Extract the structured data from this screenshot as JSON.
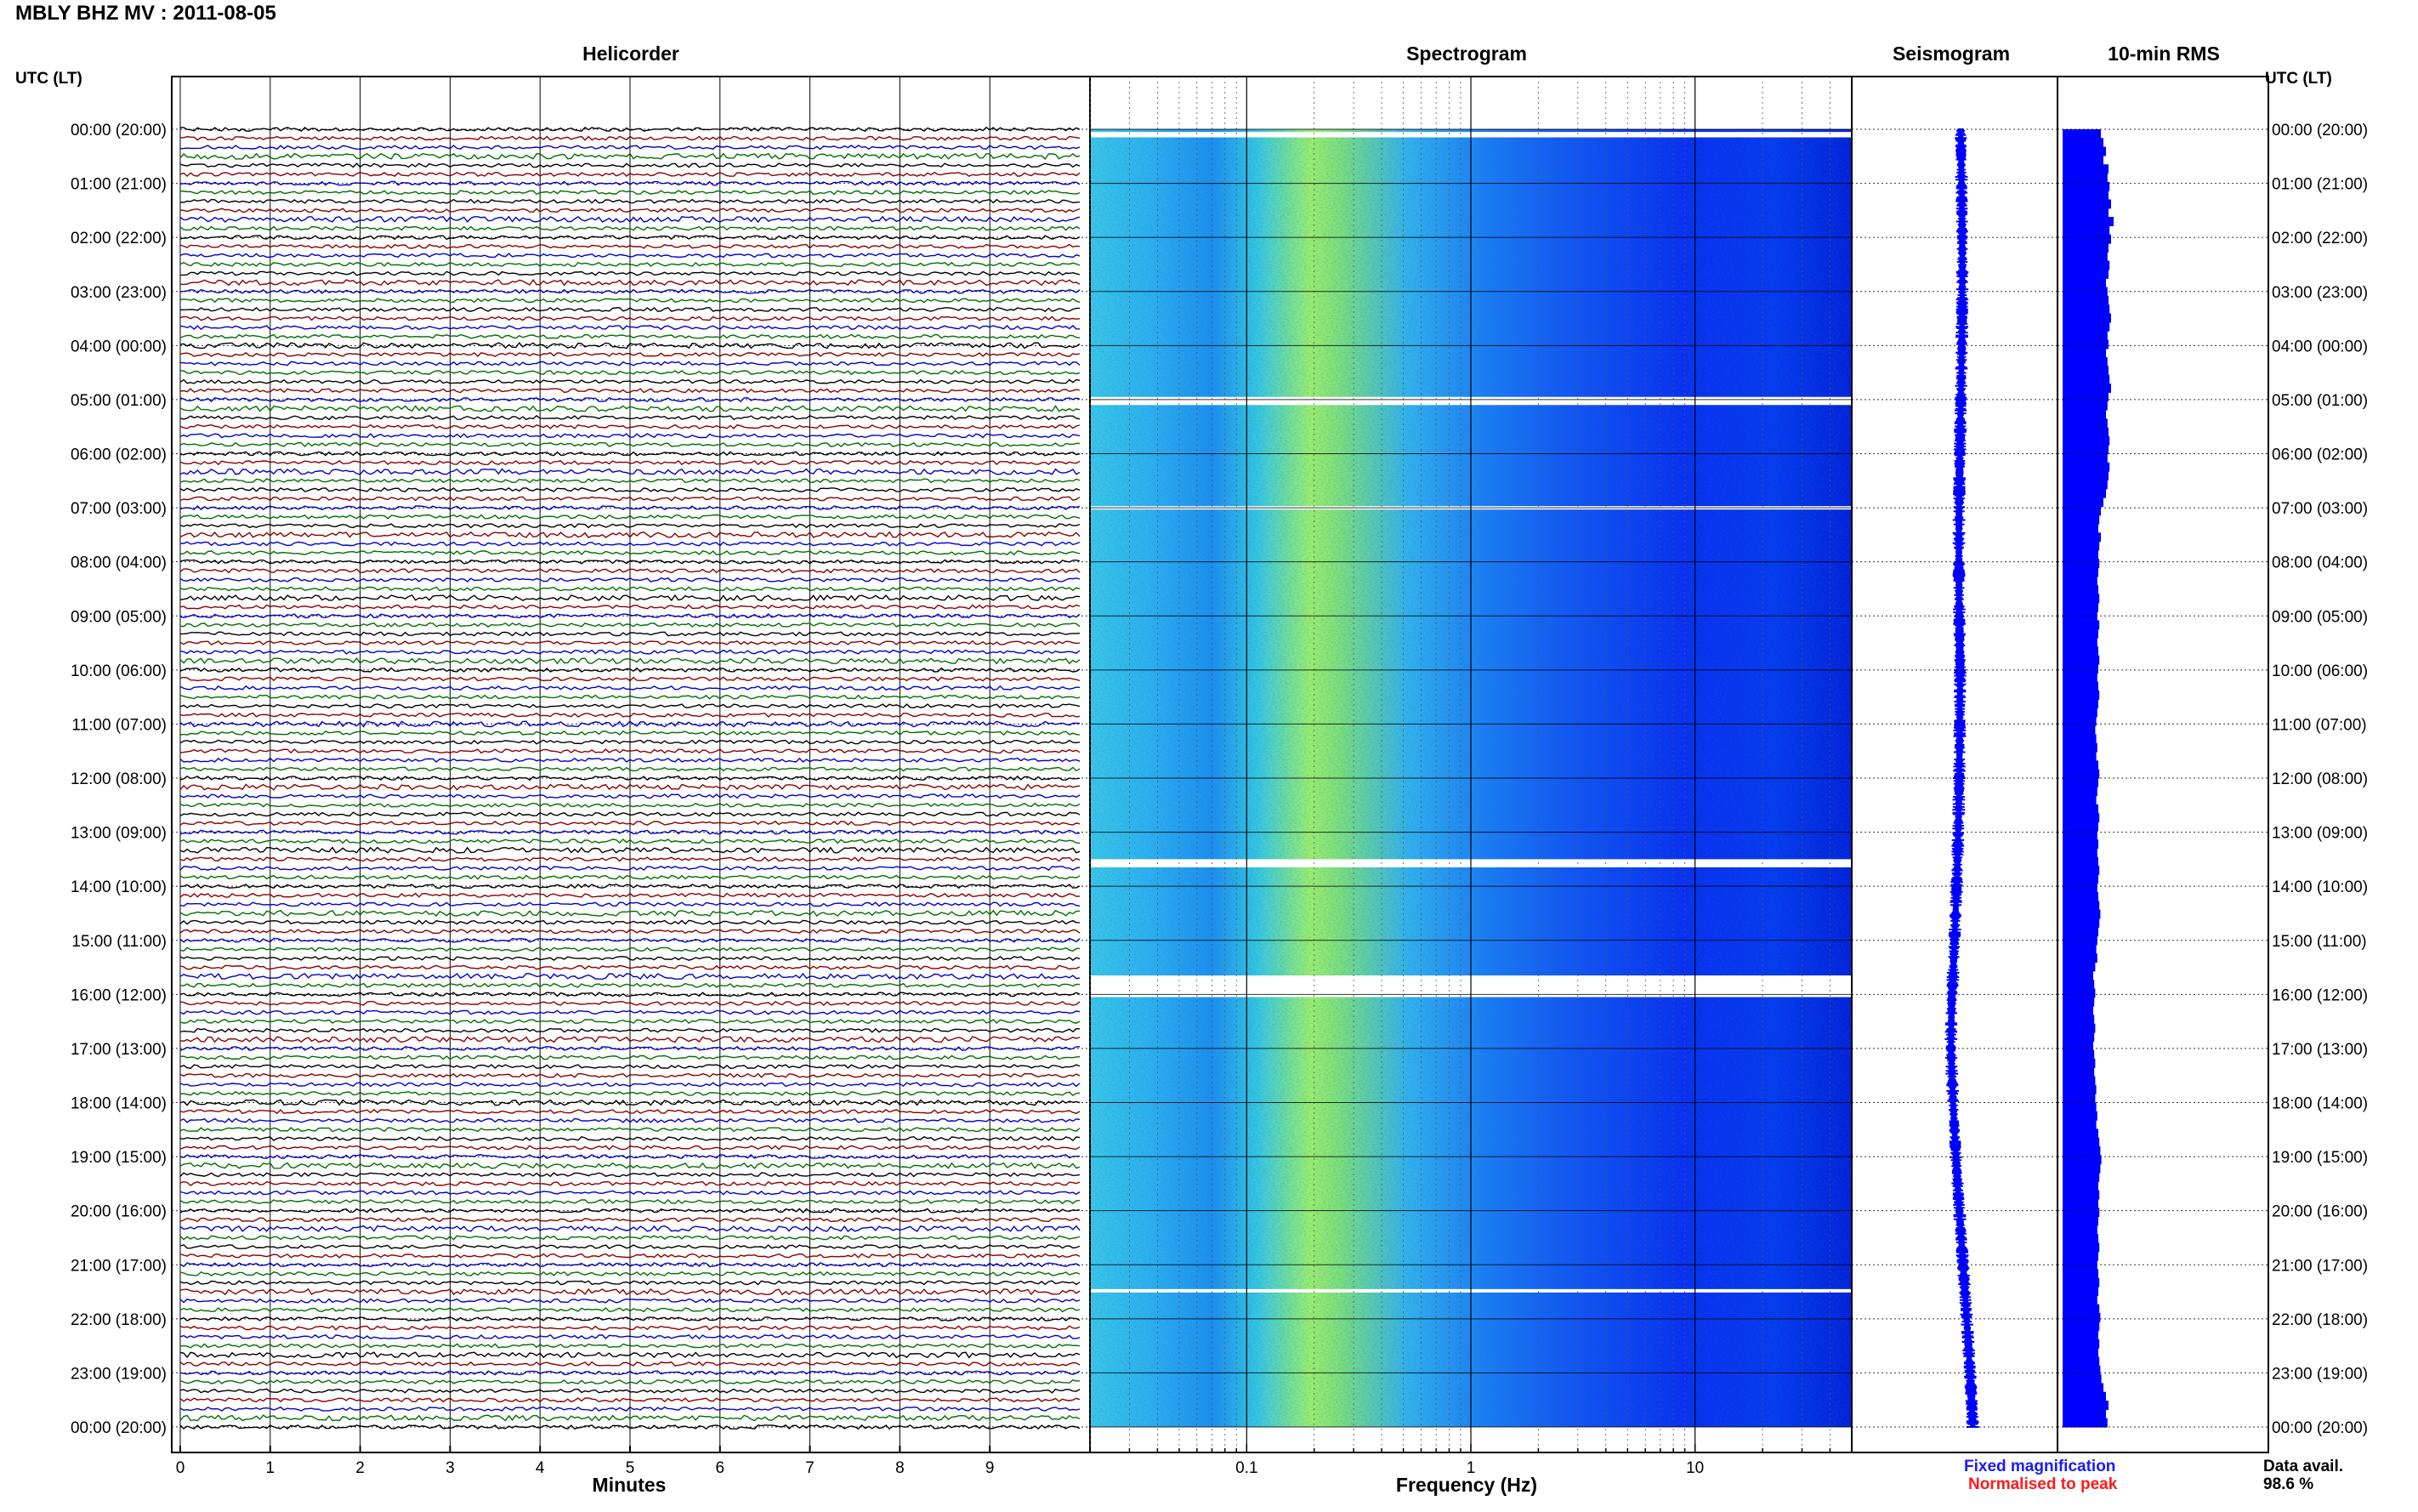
{
  "header": {
    "title": "MBLY BHZ MV : 2011-08-05"
  },
  "panels": {
    "helicorder": "Helicorder",
    "spectrogram": "Spectrogram",
    "seismogram": "Seismogram",
    "rms": "10-min RMS"
  },
  "axes": {
    "time_header_left": "UTC (LT)",
    "time_header_right": "UTC (LT)",
    "minutes_label": "Minutes",
    "frequency_label": "Frequency (Hz)"
  },
  "footer": {
    "fixed_magnification": "Fixed magnification",
    "normalised_to_peak": "Normalised to peak",
    "data_avail_label": "Data avail.",
    "data_avail_value": "98.6 %"
  },
  "colors": {
    "trace_cycle": [
      "#000000",
      "#8b0000",
      "#0000cc",
      "#007000"
    ],
    "rms_bar": "#0000ff",
    "seismogram": "#0000ff",
    "fixed_magnification": "#1a1aff",
    "normalised_to_peak": "#ff1a1a"
  },
  "chart_data": [
    {
      "type": "line",
      "title": "Helicorder",
      "xlabel": "Minutes",
      "ylabel": "UTC (LT)",
      "x_ticks": [
        0,
        1,
        2,
        3,
        4,
        5,
        6,
        7,
        8,
        9
      ],
      "xlim": [
        0,
        10
      ],
      "rows_per_hour": 6,
      "y_tick_labels": [
        "00:00 (20:00)",
        "01:00 (21:00)",
        "02:00 (22:00)",
        "03:00 (23:00)",
        "04:00 (00:00)",
        "05:00 (01:00)",
        "06:00 (02:00)",
        "07:00 (03:00)",
        "08:00 (04:00)",
        "09:00 (05:00)",
        "10:00 (06:00)",
        "11:00 (07:00)",
        "12:00 (08:00)",
        "13:00 (09:00)",
        "14:00 (10:00)",
        "15:00 (11:00)",
        "16:00 (12:00)",
        "17:00 (13:00)",
        "18:00 (14:00)",
        "19:00 (15:00)",
        "20:00 (16:00)",
        "21:00 (17:00)",
        "22:00 (18:00)",
        "23:00 (19:00)",
        "00:00 (20:00)"
      ],
      "grid": true
    },
    {
      "type": "heatmap",
      "title": "Spectrogram",
      "xlabel": "Frequency (Hz)",
      "x_scale": "log",
      "xlim": [
        0.02,
        50
      ],
      "x_tick_labels": [
        "0.1",
        "1",
        "10"
      ],
      "data_gaps_utc_hours": [
        [
          0.05,
          0.15
        ],
        [
          4.95,
          5.1
        ],
        [
          6.97,
          7.03
        ],
        [
          13.5,
          13.65
        ],
        [
          15.65,
          16.05
        ],
        [
          21.45,
          21.5
        ]
      ],
      "grid": true
    },
    {
      "type": "line",
      "title": "Seismogram",
      "y_tick_labels": []
    },
    {
      "type": "bar",
      "title": "10-min RMS",
      "orientation": "horizontal",
      "rms_relative": [
        0.75,
        0.8,
        0.85,
        0.8,
        0.9,
        0.88,
        0.92,
        0.9,
        0.95,
        0.9,
        1.0,
        0.92,
        0.95,
        0.9,
        0.88,
        0.92,
        0.9,
        0.85,
        0.88,
        0.9,
        0.92,
        0.95,
        0.92,
        0.88,
        0.9,
        0.85,
        0.88,
        0.9,
        0.92,
        0.95,
        0.9,
        0.88,
        0.85,
        0.88,
        0.9,
        0.92,
        0.9,
        0.88,
        0.92,
        0.9,
        0.88,
        0.85,
        0.8,
        0.75,
        0.72,
        0.7,
        0.75,
        0.72,
        0.7,
        0.72,
        0.7,
        0.68,
        0.7,
        0.72,
        0.7,
        0.68,
        0.72,
        0.7,
        0.68,
        0.7,
        0.72,
        0.7,
        0.68,
        0.7,
        0.72,
        0.7,
        0.68,
        0.66,
        0.64,
        0.66,
        0.68,
        0.66,
        0.7,
        0.72,
        0.7,
        0.68,
        0.66,
        0.7,
        0.72,
        0.7,
        0.68,
        0.7,
        0.68,
        0.7,
        0.72,
        0.7,
        0.68,
        0.7,
        0.72,
        0.74,
        0.72,
        0.7,
        0.68,
        0.66,
        0.68,
        0.64,
        0.6,
        0.62,
        0.64,
        0.62,
        0.6,
        0.62,
        0.64,
        0.62,
        0.6,
        0.62,
        0.64,
        0.62,
        0.64,
        0.66,
        0.64,
        0.66,
        0.68,
        0.66,
        0.7,
        0.72,
        0.74,
        0.76,
        0.74,
        0.72,
        0.7,
        0.72,
        0.7,
        0.72,
        0.7,
        0.68,
        0.7,
        0.72,
        0.7,
        0.68,
        0.7,
        0.72,
        0.7,
        0.68,
        0.72,
        0.74,
        0.72,
        0.7,
        0.72,
        0.7,
        0.72,
        0.74,
        0.76,
        0.8,
        0.85,
        0.9,
        0.85,
        0.88
      ]
    }
  ]
}
